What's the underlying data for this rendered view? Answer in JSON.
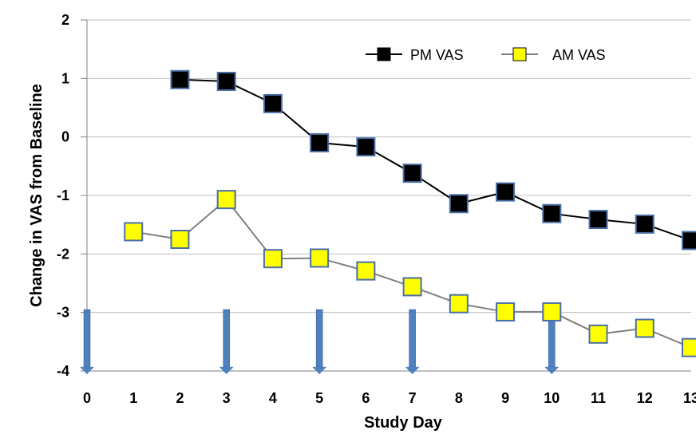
{
  "chart_data": {
    "type": "line",
    "title": "",
    "xlabel": "Study Day",
    "ylabel": "Change in VAS from Baseline",
    "xlim": [
      0,
      13
    ],
    "ylim": [
      -4,
      2
    ],
    "x_ticks": [
      "0",
      "1",
      "2",
      "3",
      "4",
      "5",
      "6",
      "7",
      "8",
      "9",
      "10",
      "11",
      "12",
      "13"
    ],
    "y_ticks": [
      "2",
      "1",
      "0",
      "-1",
      "-2",
      "-3",
      "-4"
    ],
    "grid": "horizontal",
    "legend_position": "top-right",
    "series": [
      {
        "name": "PM VAS",
        "color": "#000000",
        "line_color": "#000000",
        "marker": "square",
        "x": [
          2,
          3,
          4,
          5,
          6,
          7,
          8,
          9,
          10,
          11,
          12,
          13
        ],
        "values": [
          0.98,
          0.95,
          0.57,
          -0.1,
          -0.17,
          -0.62,
          -1.14,
          -0.94,
          -1.31,
          -1.41,
          -1.49,
          -1.77
        ]
      },
      {
        "name": "AM VAS",
        "color": "#ffff00",
        "line_color": "#808080",
        "marker": "square",
        "x": [
          1,
          2,
          3,
          4,
          5,
          6,
          7,
          8,
          9,
          10,
          11,
          12,
          13
        ],
        "values": [
          -1.62,
          -1.75,
          -1.07,
          -2.08,
          -2.07,
          -2.29,
          -2.56,
          -2.85,
          -2.99,
          -2.99,
          -3.37,
          -3.27,
          -3.6
        ]
      }
    ],
    "arrows": {
      "color": "#4f81bd",
      "x": [
        0,
        3,
        5,
        7,
        10
      ]
    }
  }
}
